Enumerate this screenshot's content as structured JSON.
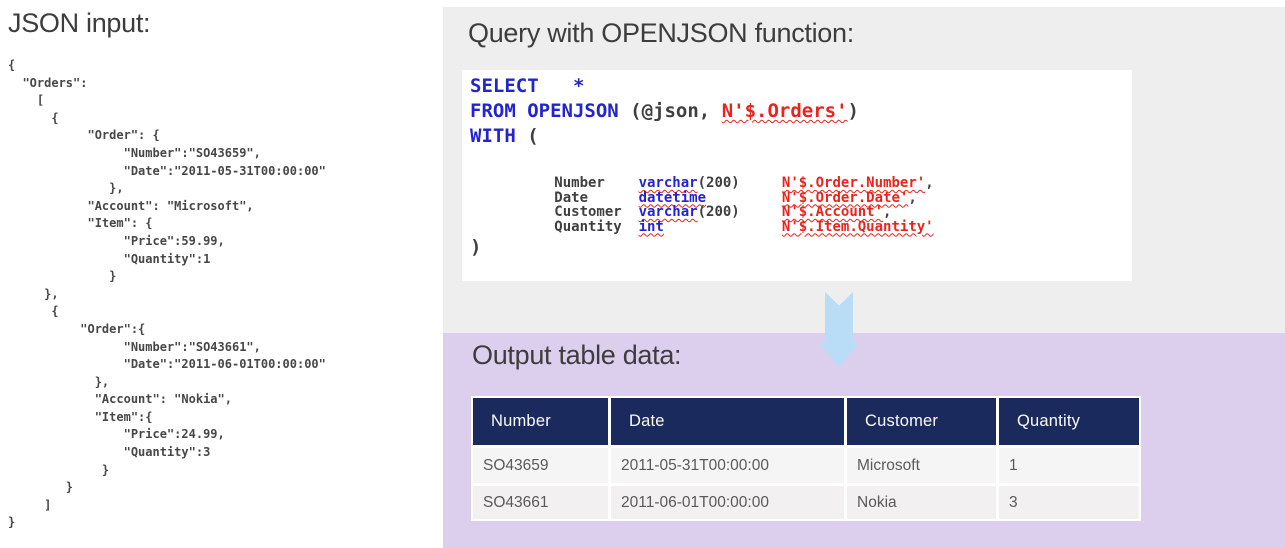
{
  "json_input": {
    "title": "JSON input:",
    "lines": [
      "{",
      "  \"Orders\":",
      "    [",
      "      {",
      "           \"Order\": {",
      "                \"Number\":\"SO43659\",",
      "                \"Date\":\"2011-05-31T00:00:00\"",
      "              },",
      "           \"Account\": \"Microsoft\",",
      "           \"Item\": {",
      "                \"Price\":59.99,",
      "                \"Quantity\":1",
      "              }",
      "     },",
      "      {",
      "          \"Order\":{",
      "                \"Number\":\"SO43661\",",
      "                \"Date\":\"2011-06-01T00:00:00\"",
      "            },",
      "            \"Account\": \"Nokia\",",
      "            \"Item\":{",
      "                \"Price\":24.99,",
      "                \"Quantity\":3",
      "             }",
      "        }",
      "     ]",
      "}"
    ]
  },
  "query": {
    "title": "Query with OPENJSON function:",
    "code": {
      "lines": [
        {
          "kind": "big",
          "seg": [
            {
              "x": "SELECT",
              "c": "k"
            },
            {
              "x": "   ",
              "c": "p"
            },
            {
              "x": "*",
              "c": "k"
            }
          ]
        },
        {
          "kind": "big",
          "seg": [
            {
              "x": "FROM",
              "c": "k"
            },
            {
              "x": " ",
              "c": "p"
            },
            {
              "x": "OPENJSON",
              "c": "k"
            },
            {
              "x": " (@json, ",
              "c": "p"
            },
            {
              "x": "N'$.Orders'",
              "c": "s"
            },
            {
              "x": ")",
              "c": "p"
            }
          ]
        },
        {
          "kind": "big",
          "seg": [
            {
              "x": "WITH",
              "c": "k"
            },
            {
              "x": " (",
              "c": "p"
            }
          ]
        },
        {
          "kind": "spacer",
          "seg": []
        },
        {
          "kind": "tight",
          "seg": [
            {
              "x": "          Number    ",
              "c": "p"
            },
            {
              "x": "varchar",
              "c": "t"
            },
            {
              "x": "(200)     ",
              "c": "p"
            },
            {
              "x": "N'$.Order.Number'",
              "c": "s"
            },
            {
              "x": ",",
              "c": "p"
            }
          ]
        },
        {
          "kind": "tight",
          "seg": [
            {
              "x": "          Date      ",
              "c": "p"
            },
            {
              "x": "datetime",
              "c": "t"
            },
            {
              "x": "         ",
              "c": "p"
            },
            {
              "x": "N'$.Order.Date'",
              "c": "s"
            },
            {
              "x": ",",
              "c": "p"
            }
          ]
        },
        {
          "kind": "tight",
          "seg": [
            {
              "x": "          Customer  ",
              "c": "p"
            },
            {
              "x": "varchar",
              "c": "t"
            },
            {
              "x": "(200)     ",
              "c": "p"
            },
            {
              "x": "N'$.Account'",
              "c": "s"
            },
            {
              "x": ",",
              "c": "p"
            }
          ]
        },
        {
          "kind": "tight",
          "seg": [
            {
              "x": "          Quantity  ",
              "c": "p"
            },
            {
              "x": "int",
              "c": "t"
            },
            {
              "x": "              ",
              "c": "p"
            },
            {
              "x": "N'$.Item.Quantity'",
              "c": "s"
            }
          ]
        },
        {
          "kind": "close",
          "seg": [
            {
              "x": ")",
              "c": "p"
            }
          ]
        }
      ]
    }
  },
  "output": {
    "title": "Output table data:",
    "table": {
      "headers": [
        "Number",
        "Date",
        "Customer",
        "Quantity"
      ],
      "rows": [
        [
          "SO43659",
          "2011-05-31T00:00:00",
          "Microsoft",
          "1"
        ],
        [
          "SO43661",
          "2011-06-01T00:00:00",
          "Nokia",
          "3"
        ]
      ]
    }
  },
  "arrow": {
    "direction": "down"
  },
  "colors": {
    "panel_gray": "#efeeee",
    "panel_purple": "#dbcfed",
    "table_header_navy": "#1b2a5c",
    "keyword_blue": "#2424ce",
    "string_red": "#e9231d",
    "arrow_blue": "#b9ddf6",
    "heading_gray": "#3d3d3d"
  }
}
